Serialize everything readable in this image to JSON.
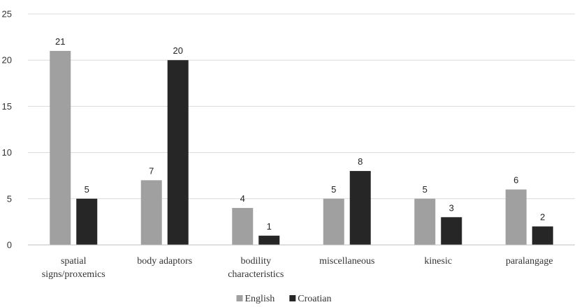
{
  "chart_data": {
    "type": "bar",
    "categories": [
      [
        "spatial",
        "signs/proxemics"
      ],
      [
        "body adaptors"
      ],
      [
        "bodility",
        "characteristics"
      ],
      [
        "miscellaneous"
      ],
      [
        "kinesic"
      ],
      [
        "paralangage"
      ]
    ],
    "series": [
      {
        "name": "English",
        "values": [
          21,
          7,
          4,
          5,
          5,
          6
        ],
        "color": "#a0a0a0"
      },
      {
        "name": "Croatian",
        "values": [
          5,
          20,
          1,
          8,
          3,
          2
        ],
        "color": "#262626"
      }
    ],
    "title": "",
    "xlabel": "",
    "ylabel": "",
    "ylim": [
      0,
      25
    ],
    "yticks": [
      0,
      5,
      10,
      15,
      20,
      25
    ],
    "grid": true,
    "legend_position": "bottom-center",
    "grid_color": "#d9d9d9",
    "axis_color": "#bfbfbf"
  }
}
